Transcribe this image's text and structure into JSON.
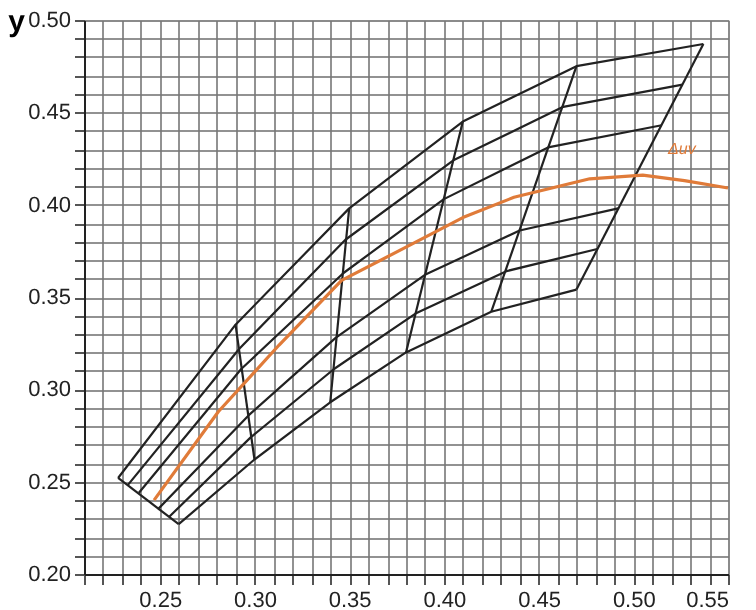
{
  "chart_data": {
    "type": "line",
    "ylabel": "y",
    "xlim": [
      0.21,
      0.55
    ],
    "ylim": [
      0.2,
      0.5
    ],
    "grid": true,
    "marker": "none",
    "line_style": "solid",
    "xticks": [
      {
        "value": 0.21,
        "label": null
      },
      {
        "value": 0.22,
        "label": null
      },
      {
        "value": 0.23,
        "label": null
      },
      {
        "value": 0.24,
        "label": null
      },
      {
        "value": 0.25,
        "label": "0.25"
      },
      {
        "value": 0.26,
        "label": null
      },
      {
        "value": 0.27,
        "label": null
      },
      {
        "value": 0.28,
        "label": null
      },
      {
        "value": 0.29,
        "label": null
      },
      {
        "value": 0.3,
        "label": "0.30"
      },
      {
        "value": 0.31,
        "label": null
      },
      {
        "value": 0.32,
        "label": null
      },
      {
        "value": 0.33,
        "label": null
      },
      {
        "value": 0.34,
        "label": null
      },
      {
        "value": 0.35,
        "label": "0.35"
      },
      {
        "value": 0.36,
        "label": null
      },
      {
        "value": 0.37,
        "label": null
      },
      {
        "value": 0.38,
        "label": null
      },
      {
        "value": 0.39,
        "label": null
      },
      {
        "value": 0.4,
        "label": "0.40"
      },
      {
        "value": 0.41,
        "label": null
      },
      {
        "value": 0.42,
        "label": null
      },
      {
        "value": 0.43,
        "label": null
      },
      {
        "value": 0.44,
        "label": null
      },
      {
        "value": 0.45,
        "label": "0.45"
      },
      {
        "value": 0.46,
        "label": null
      },
      {
        "value": 0.47,
        "label": null
      },
      {
        "value": 0.48,
        "label": null
      },
      {
        "value": 0.49,
        "label": null
      },
      {
        "value": 0.5,
        "label": "0.50"
      },
      {
        "value": 0.51,
        "label": null
      },
      {
        "value": 0.52,
        "label": null
      },
      {
        "value": 0.53,
        "label": null
      },
      {
        "value": 0.54,
        "label": null
      },
      {
        "value": 0.55,
        "label": "0.55"
      }
    ],
    "yticks": [
      {
        "value": 0.2,
        "label": "0.20"
      },
      {
        "value": 0.21,
        "label": null
      },
      {
        "value": 0.22,
        "label": null
      },
      {
        "value": 0.23,
        "label": null
      },
      {
        "value": 0.24,
        "label": null
      },
      {
        "value": 0.25,
        "label": "0.25"
      },
      {
        "value": 0.26,
        "label": null
      },
      {
        "value": 0.27,
        "label": null
      },
      {
        "value": 0.28,
        "label": null
      },
      {
        "value": 0.29,
        "label": null
      },
      {
        "value": 0.3,
        "label": "0.30"
      },
      {
        "value": 0.31,
        "label": null
      },
      {
        "value": 0.32,
        "label": null
      },
      {
        "value": 0.33,
        "label": null
      },
      {
        "value": 0.34,
        "label": null
      },
      {
        "value": 0.35,
        "label": "0.35"
      },
      {
        "value": 0.36,
        "label": null
      },
      {
        "value": 0.37,
        "label": null
      },
      {
        "value": 0.38,
        "label": null
      },
      {
        "value": 0.39,
        "label": null
      },
      {
        "value": 0.4,
        "label": "0.40"
      },
      {
        "value": 0.41,
        "label": null
      },
      {
        "value": 0.42,
        "label": null
      },
      {
        "value": 0.43,
        "label": null
      },
      {
        "value": 0.44,
        "label": null
      },
      {
        "value": 0.45,
        "label": "0.45"
      },
      {
        "value": 0.46,
        "label": null
      },
      {
        "value": 0.47,
        "label": null
      },
      {
        "value": 0.48,
        "label": null
      },
      {
        "value": 0.49,
        "label": null
      },
      {
        "value": 0.5,
        "label": "0.50"
      }
    ],
    "annotations": [
      "Δuv"
    ],
    "series": [
      {
        "color": "#222222",
        "x": [
          0.228,
          0.29,
          0.35,
          0.41,
          0.47,
          0.537
        ],
        "values": [
          0.252,
          0.335,
          0.398,
          0.445,
          0.475,
          0.487
        ]
      },
      {
        "color": "#222222",
        "x": [
          0.233,
          0.292,
          0.348,
          0.405,
          0.463,
          0.526
        ],
        "values": [
          0.248,
          0.322,
          0.381,
          0.424,
          0.453,
          0.465
        ]
      },
      {
        "color": "#222222",
        "x": [
          0.239,
          0.293,
          0.347,
          0.4,
          0.455,
          0.515
        ],
        "values": [
          0.244,
          0.311,
          0.363,
          0.403,
          0.431,
          0.443
        ]
      },
      {
        "color": "#222222",
        "x": [
          0.249,
          0.297,
          0.343,
          0.39,
          0.44,
          0.492
        ],
        "values": [
          0.235,
          0.286,
          0.328,
          0.362,
          0.386,
          0.398
        ]
      },
      {
        "color": "#222222",
        "x": [
          0.255,
          0.298,
          0.342,
          0.385,
          0.433,
          0.481
        ],
        "values": [
          0.231,
          0.274,
          0.311,
          0.341,
          0.364,
          0.376
        ]
      },
      {
        "color": "#222222",
        "x": [
          0.26,
          0.3,
          0.34,
          0.38,
          0.425,
          0.47
        ],
        "values": [
          0.227,
          0.262,
          0.293,
          0.32,
          0.342,
          0.354
        ]
      },
      {
        "color": "#222222",
        "x": [
          0.228,
          0.26
        ],
        "values": [
          0.252,
          0.227
        ]
      },
      {
        "color": "#222222",
        "x": [
          0.29,
          0.3
        ],
        "values": [
          0.335,
          0.262
        ]
      },
      {
        "color": "#222222",
        "x": [
          0.35,
          0.34
        ],
        "values": [
          0.398,
          0.293
        ]
      },
      {
        "color": "#222222",
        "x": [
          0.41,
          0.38
        ],
        "values": [
          0.445,
          0.32
        ]
      },
      {
        "color": "#222222",
        "x": [
          0.47,
          0.425
        ],
        "values": [
          0.475,
          0.342
        ]
      },
      {
        "color": "#222222",
        "x": [
          0.537,
          0.47
        ],
        "values": [
          0.487,
          0.354
        ]
      },
      {
        "color": "#e07b39",
        "x": [
          0.247,
          0.281,
          0.313,
          0.346,
          0.38,
          0.41,
          0.437,
          0.477,
          0.505,
          0.527,
          0.55
        ],
        "values": [
          0.24,
          0.288,
          0.324,
          0.359,
          0.377,
          0.393,
          0.404,
          0.414,
          0.416,
          0.413,
          0.409
        ]
      }
    ]
  }
}
